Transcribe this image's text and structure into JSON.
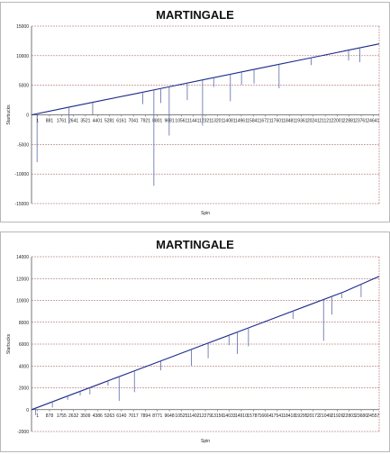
{
  "chart_data": [
    {
      "type": "line",
      "title": "MARTINGALE",
      "xlabel": "Spin",
      "ylabel": "Starbucks",
      "ylim": [
        -15000,
        15000
      ],
      "yticks": [
        15000,
        10000,
        5000,
        0,
        -5000,
        -10000,
        -15000
      ],
      "ytick_labels": [
        "15000",
        "10000",
        "5000",
        "0",
        "-5000",
        "-10000",
        "-15000"
      ],
      "xlim": [
        1,
        25000
      ],
      "xtick_labels": [
        "1",
        "881",
        "1761",
        "2641",
        "3521",
        "4401",
        "5281",
        "6161",
        "7041",
        "7921",
        "8801",
        "9681",
        "10561",
        "11441",
        "12321",
        "13201",
        "14081",
        "14961",
        "15841",
        "16721",
        "17601",
        "18481",
        "19361",
        "20241",
        "21121",
        "22001",
        "22881",
        "23761",
        "24641"
      ],
      "grid": true,
      "series": [
        {
          "x": [
            1,
            2500,
            5000,
            7500,
            10000,
            12500,
            15000,
            17500,
            20000,
            22500,
            25000
          ],
          "values": [
            0,
            1200,
            2400,
            3600,
            4800,
            6000,
            7200,
            8400,
            9600,
            10800,
            12000
          ]
        }
      ],
      "drawdowns": [
        {
          "x": 400,
          "low": -8000
        },
        {
          "x": 2700,
          "low": -1500
        },
        {
          "x": 4400,
          "low": 0
        },
        {
          "x": 8000,
          "low": 1800
        },
        {
          "x": 8800,
          "low": -12000
        },
        {
          "x": 9300,
          "low": 2000
        },
        {
          "x": 9900,
          "low": -3500
        },
        {
          "x": 11200,
          "low": 2500
        },
        {
          "x": 12300,
          "low": -1800
        },
        {
          "x": 13100,
          "low": 4700
        },
        {
          "x": 14300,
          "low": 2300
        },
        {
          "x": 15100,
          "low": 5100
        },
        {
          "x": 16000,
          "low": 5300
        },
        {
          "x": 17800,
          "low": 4500
        },
        {
          "x": 20100,
          "low": 8400
        },
        {
          "x": 22800,
          "low": 9200
        },
        {
          "x": 23600,
          "low": 8900
        }
      ]
    },
    {
      "type": "line",
      "title": "MARTINGALE",
      "xlabel": "Spin",
      "ylabel": "Starbucks",
      "ylim": [
        -2000,
        14000
      ],
      "yticks": [
        14000,
        12000,
        10000,
        8000,
        6000,
        4000,
        2000,
        0,
        -2000
      ],
      "ytick_labels": [
        "14000",
        "12000",
        "10000",
        "8000",
        "6000",
        "4000",
        "2000",
        "0",
        "-2000"
      ],
      "xlim": [
        1,
        25000
      ],
      "xtick_labels": [
        "1",
        "878",
        "1755",
        "2632",
        "3509",
        "4386",
        "5263",
        "6140",
        "7017",
        "7894",
        "8771",
        "9648",
        "10525",
        "11402",
        "12279",
        "13156",
        "14033",
        "14910",
        "15787",
        "16664",
        "17541",
        "18418",
        "19295",
        "20172",
        "21049",
        "21926",
        "22803",
        "23680",
        "24557"
      ],
      "grid": true,
      "series": [
        {
          "x": [
            1,
            2500,
            5000,
            7500,
            10000,
            12500,
            15000,
            17500,
            20000,
            22500,
            25000
          ],
          "values": [
            0,
            1200,
            2400,
            3600,
            4800,
            6000,
            7200,
            8400,
            9600,
            10800,
            12200
          ]
        }
      ],
      "drawdowns": [
        {
          "x": 300,
          "low": -500
        },
        {
          "x": 1500,
          "low": 200
        },
        {
          "x": 2600,
          "low": 900
        },
        {
          "x": 3500,
          "low": 1300
        },
        {
          "x": 4200,
          "low": 1400
        },
        {
          "x": 5500,
          "low": 2200
        },
        {
          "x": 6300,
          "low": 800
        },
        {
          "x": 7400,
          "low": 1600
        },
        {
          "x": 9300,
          "low": 3600
        },
        {
          "x": 11500,
          "low": 4000
        },
        {
          "x": 12700,
          "low": 4700
        },
        {
          "x": 14200,
          "low": 5900
        },
        {
          "x": 14800,
          "low": 5100
        },
        {
          "x": 15600,
          "low": 5800
        },
        {
          "x": 18800,
          "low": 8300
        },
        {
          "x": 21000,
          "low": 6300
        },
        {
          "x": 21600,
          "low": 8700
        },
        {
          "x": 22300,
          "low": 10200
        },
        {
          "x": 23700,
          "low": 10300
        }
      ]
    }
  ]
}
